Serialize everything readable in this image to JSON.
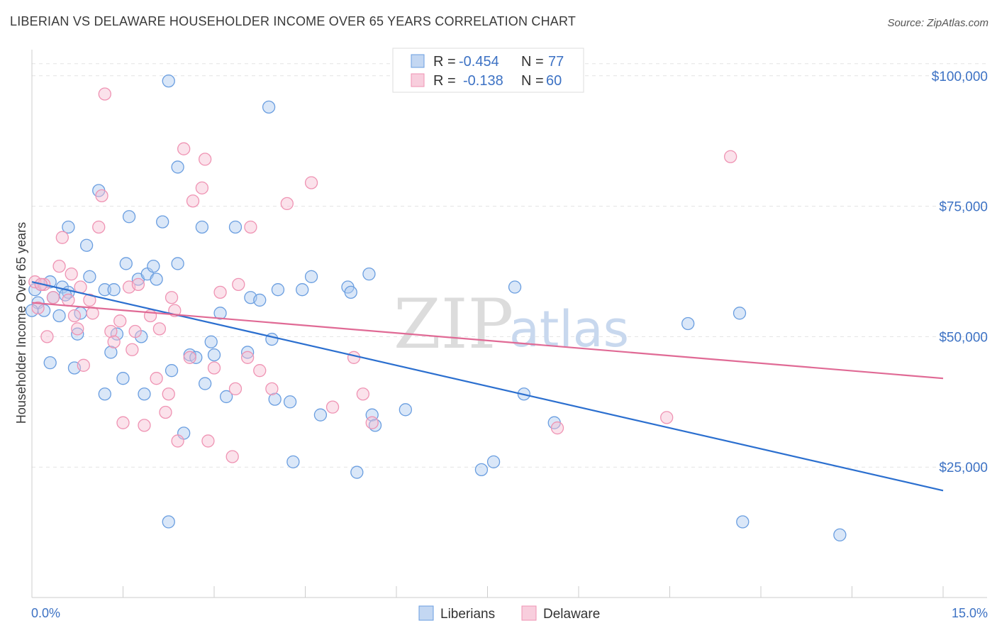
{
  "title": "LIBERIAN VS DELAWARE HOUSEHOLDER INCOME OVER 65 YEARS CORRELATION CHART",
  "source": "Source: ZipAtlas.com",
  "watermark": {
    "zip": "ZIP",
    "atlas": "atlas"
  },
  "legend": {
    "liberians": {
      "r_label": "R =",
      "r_value": "-0.454",
      "n_label": "N =",
      "n_value": "77"
    },
    "delaware": {
      "r_label": "R =",
      "r_value": "-0.138",
      "n_label": "N =",
      "n_value": "60"
    }
  },
  "bottom_legend": {
    "liberians": "Liberians",
    "delaware": "Delaware"
  },
  "chart_data": {
    "type": "scatter",
    "xlabel": "",
    "ylabel": "Householder Income Over 65 years",
    "xlim": [
      0,
      15
    ],
    "ylim": [
      0,
      105000
    ],
    "x_tick_labels": [
      "0.0%",
      "15.0%"
    ],
    "y_ticks": [
      25000,
      50000,
      75000,
      100000
    ],
    "y_tick_labels": [
      "$25,000",
      "$50,000",
      "$75,000",
      "$100,000"
    ],
    "grid": true,
    "legend_position": "top-center",
    "colors": {
      "liberians": "#6a9ee0",
      "liberians_line": "#2b6fcf",
      "delaware": "#ef93b3",
      "delaware_line": "#e06a95"
    },
    "series": [
      {
        "name": "Liberians",
        "trend": {
          "x": [
            0,
            15
          ],
          "y": [
            60500,
            20500
          ]
        },
        "points": [
          [
            0.05,
            59000
          ],
          [
            0.1,
            56500
          ],
          [
            0.15,
            60000
          ],
          [
            0.2,
            55000
          ],
          [
            0.3,
            60500
          ],
          [
            0.3,
            45000
          ],
          [
            0.35,
            57500
          ],
          [
            0.45,
            54000
          ],
          [
            0.5,
            59500
          ],
          [
            0.6,
            71000
          ],
          [
            0.6,
            58500
          ],
          [
            0.7,
            44000
          ],
          [
            0.75,
            50500
          ],
          [
            0.8,
            54500
          ],
          [
            0.9,
            67500
          ],
          [
            0.95,
            61500
          ],
          [
            1.1,
            78000
          ],
          [
            1.2,
            39000
          ],
          [
            1.2,
            59000
          ],
          [
            1.3,
            47000
          ],
          [
            1.35,
            59000
          ],
          [
            1.4,
            50500
          ],
          [
            1.5,
            42000
          ],
          [
            1.55,
            64000
          ],
          [
            1.6,
            73000
          ],
          [
            1.75,
            61000
          ],
          [
            1.8,
            50000
          ],
          [
            1.85,
            39000
          ],
          [
            1.9,
            62000
          ],
          [
            2.0,
            63500
          ],
          [
            2.05,
            61000
          ],
          [
            2.15,
            72000
          ],
          [
            2.25,
            99000
          ],
          [
            2.25,
            14500
          ],
          [
            2.3,
            43500
          ],
          [
            2.4,
            82500
          ],
          [
            2.4,
            64000
          ],
          [
            2.5,
            31500
          ],
          [
            2.6,
            46500
          ],
          [
            2.8,
            71000
          ],
          [
            2.85,
            41000
          ],
          [
            2.95,
            49000
          ],
          [
            3.0,
            46500
          ],
          [
            3.1,
            54500
          ],
          [
            3.2,
            38500
          ],
          [
            3.35,
            71000
          ],
          [
            3.55,
            47000
          ],
          [
            3.6,
            57500
          ],
          [
            3.75,
            57000
          ],
          [
            3.9,
            94000
          ],
          [
            3.95,
            49500
          ],
          [
            4.0,
            38000
          ],
          [
            4.05,
            59000
          ],
          [
            4.25,
            37500
          ],
          [
            4.3,
            26000
          ],
          [
            4.45,
            59000
          ],
          [
            4.6,
            61500
          ],
          [
            4.75,
            35000
          ],
          [
            5.2,
            59500
          ],
          [
            5.25,
            58500
          ],
          [
            5.35,
            24000
          ],
          [
            5.55,
            62000
          ],
          [
            5.6,
            35000
          ],
          [
            5.65,
            33000
          ],
          [
            6.15,
            36000
          ],
          [
            7.4,
            24500
          ],
          [
            7.6,
            26000
          ],
          [
            7.95,
            59500
          ],
          [
            8.1,
            39000
          ],
          [
            8.6,
            33500
          ],
          [
            10.8,
            52500
          ],
          [
            11.65,
            54500
          ],
          [
            11.7,
            14500
          ],
          [
            13.3,
            12000
          ],
          [
            0.0,
            55000
          ],
          [
            0.55,
            58000
          ],
          [
            2.7,
            46000
          ]
        ]
      },
      {
        "name": "Delaware",
        "trend": {
          "x": [
            0,
            15
          ],
          "y": [
            56500,
            42000
          ]
        },
        "points": [
          [
            0.05,
            60500
          ],
          [
            0.1,
            55500
          ],
          [
            0.2,
            60000
          ],
          [
            0.25,
            50000
          ],
          [
            0.35,
            57500
          ],
          [
            0.45,
            63500
          ],
          [
            0.5,
            69000
          ],
          [
            0.6,
            57000
          ],
          [
            0.65,
            62000
          ],
          [
            0.7,
            54000
          ],
          [
            0.75,
            51500
          ],
          [
            0.8,
            59500
          ],
          [
            0.85,
            44500
          ],
          [
            0.95,
            57000
          ],
          [
            1.0,
            54500
          ],
          [
            1.1,
            71000
          ],
          [
            1.15,
            77000
          ],
          [
            1.2,
            96500
          ],
          [
            1.3,
            51000
          ],
          [
            1.35,
            49000
          ],
          [
            1.45,
            53000
          ],
          [
            1.5,
            33500
          ],
          [
            1.6,
            59500
          ],
          [
            1.65,
            47500
          ],
          [
            1.7,
            51000
          ],
          [
            1.75,
            60000
          ],
          [
            1.85,
            33000
          ],
          [
            1.95,
            54000
          ],
          [
            2.05,
            42000
          ],
          [
            2.1,
            51500
          ],
          [
            2.2,
            35500
          ],
          [
            2.25,
            39000
          ],
          [
            2.3,
            57500
          ],
          [
            2.35,
            55000
          ],
          [
            2.4,
            30000
          ],
          [
            2.5,
            86000
          ],
          [
            2.6,
            46000
          ],
          [
            2.65,
            76000
          ],
          [
            2.8,
            78500
          ],
          [
            2.85,
            84000
          ],
          [
            2.9,
            30000
          ],
          [
            3.0,
            44000
          ],
          [
            3.1,
            58500
          ],
          [
            3.3,
            27000
          ],
          [
            3.35,
            40000
          ],
          [
            3.4,
            60000
          ],
          [
            3.55,
            46000
          ],
          [
            3.6,
            71000
          ],
          [
            3.75,
            43500
          ],
          [
            3.95,
            40000
          ],
          [
            4.2,
            75500
          ],
          [
            4.6,
            79500
          ],
          [
            4.95,
            36500
          ],
          [
            5.3,
            46000
          ],
          [
            5.45,
            39000
          ],
          [
            5.6,
            33500
          ],
          [
            8.65,
            32500
          ],
          [
            10.45,
            34500
          ],
          [
            11.5,
            84500
          ],
          [
            0.15,
            60000
          ]
        ]
      }
    ]
  }
}
